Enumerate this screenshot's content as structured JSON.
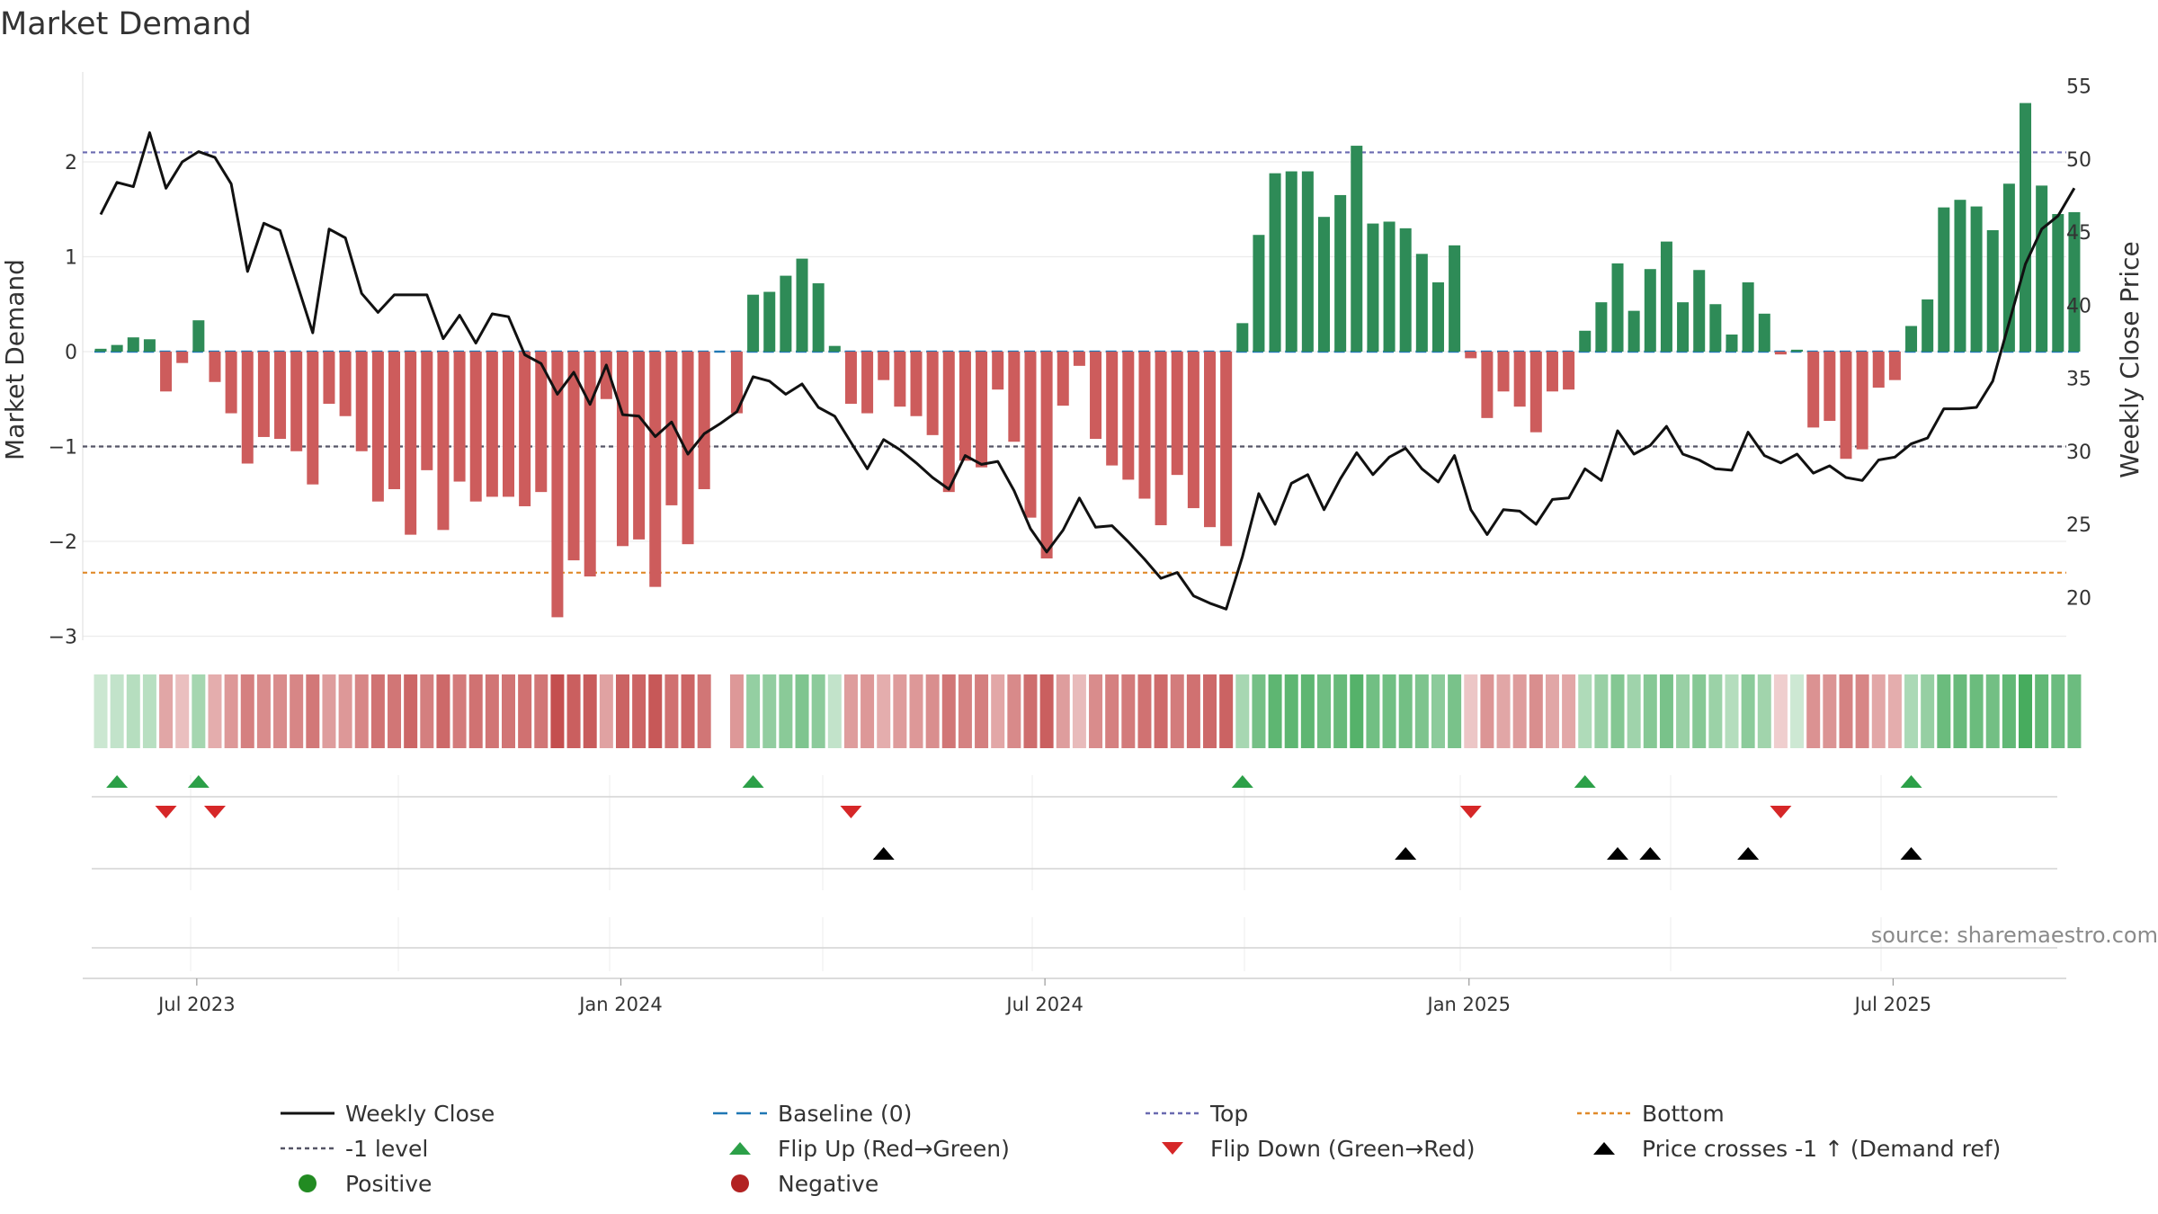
{
  "chart_data": {
    "type": "bar",
    "title": "Market Demand",
    "ylabel_left": "Market Demand",
    "ylabel_right": "Weekly Close Price",
    "ylim_left": [
      -3.0,
      2.8
    ],
    "ylim_right": [
      16,
      56
    ],
    "yticks_left": [
      2,
      1,
      0,
      -1,
      -2,
      -3
    ],
    "ytick_labels_left": [
      "2",
      "1",
      "0",
      "−1",
      "−2",
      "−3"
    ],
    "yticks_right": [
      55,
      50,
      45,
      40,
      35,
      30,
      25,
      20
    ],
    "ytick_labels_right": [
      "55",
      "50",
      "45",
      "40",
      "35",
      "30",
      "25",
      "20"
    ],
    "x_ticks": [
      {
        "label": "Jul 2023",
        "week": 6
      },
      {
        "label": "Jan 2024",
        "week": 32
      },
      {
        "label": "Jul 2024",
        "week": 58
      },
      {
        "label": "Jan 2025",
        "week": 84
      },
      {
        "label": "Jul 2025",
        "week": 110
      }
    ],
    "reference_lines": {
      "baseline": 0,
      "top": 2.1,
      "minus_one": -1,
      "bottom": -2.33
    },
    "demand_values": [
      0.03,
      0.07,
      0.15,
      0.13,
      -0.42,
      -0.12,
      0.33,
      -0.32,
      -0.65,
      -1.18,
      -0.9,
      -0.92,
      -1.05,
      -1.4,
      -0.55,
      -0.68,
      -1.05,
      -1.58,
      -1.45,
      -1.93,
      -1.25,
      -1.88,
      -1.37,
      -1.58,
      -1.53,
      -1.53,
      -1.63,
      -1.48,
      -2.8,
      -2.2,
      -2.37,
      -0.5,
      -2.05,
      -1.98,
      -2.48,
      -1.62,
      -2.03,
      -1.45,
      0.0,
      -0.65,
      0.6,
      0.63,
      0.8,
      0.98,
      0.72,
      0.06,
      -0.55,
      -0.65,
      -0.3,
      -0.58,
      -0.68,
      -0.88,
      -1.48,
      -1.15,
      -1.22,
      -0.4,
      -0.95,
      -1.75,
      -2.18,
      -0.57,
      -0.15,
      -0.92,
      -1.2,
      -1.35,
      -1.55,
      -1.83,
      -1.3,
      -1.65,
      -1.85,
      -2.05,
      0.3,
      1.23,
      1.88,
      1.9,
      1.9,
      1.42,
      1.65,
      2.17,
      1.35,
      1.37,
      1.3,
      1.03,
      0.73,
      1.12,
      -0.07,
      -0.7,
      -0.42,
      -0.58,
      -0.85,
      -0.42,
      -0.4,
      0.22,
      0.52,
      0.93,
      0.43,
      0.87,
      1.16,
      0.52,
      0.86,
      0.5,
      0.18,
      0.73,
      0.4,
      -0.03,
      0.02,
      -0.8,
      -0.73,
      -1.13,
      -1.03,
      -0.38,
      -0.3,
      0.27,
      0.55,
      1.52,
      1.6,
      1.53,
      1.28,
      1.77,
      2.62,
      1.75,
      1.45,
      1.47
    ],
    "weekly_close": [
      46.2,
      48.4,
      48.1,
      51.8,
      48.0,
      49.8,
      50.5,
      50.1,
      48.3,
      42.3,
      45.6,
      45.1,
      41.6,
      38.1,
      45.2,
      44.6,
      40.8,
      39.5,
      40.7,
      40.7,
      40.7,
      37.7,
      39.3,
      37.4,
      39.4,
      39.2,
      36.6,
      36.0,
      33.9,
      35.4,
      33.2,
      35.9,
      32.5,
      32.4,
      31.0,
      32.0,
      29.8,
      31.2,
      31.9,
      32.7,
      35.1,
      34.8,
      33.9,
      34.6,
      33.0,
      32.4,
      30.6,
      28.8,
      30.8,
      30.1,
      29.2,
      28.2,
      27.4,
      29.7,
      29.1,
      29.3,
      27.3,
      24.7,
      23.1,
      24.6,
      26.8,
      24.8,
      24.9,
      23.8,
      22.6,
      21.3,
      21.7,
      20.1,
      19.6,
      19.2,
      22.8,
      27.1,
      25.0,
      27.8,
      28.4,
      26.0,
      28.1,
      29.9,
      28.4,
      29.6,
      30.2,
      28.8,
      27.9,
      29.7,
      26.0,
      24.3,
      26.0,
      25.9,
      25.0,
      26.7,
      26.8,
      28.8,
      28.0,
      31.4,
      29.8,
      30.4,
      31.7,
      29.8,
      29.4,
      28.8,
      28.7,
      31.3,
      29.7,
      29.2,
      29.8,
      28.5,
      29.0,
      28.2,
      28.0,
      29.4,
      29.6,
      30.5,
      30.9,
      32.9,
      32.9,
      33.0,
      34.8,
      38.8,
      42.8,
      45.2,
      46.1,
      48.0
    ],
    "flip_up_weeks": [
      1,
      6,
      40,
      70,
      91,
      111
    ],
    "flip_down_weeks": [
      4,
      7,
      46,
      84,
      103
    ],
    "price_cross_weeks": [
      48,
      80,
      93,
      95,
      101,
      111
    ],
    "legend": [
      {
        "label": "Weekly Close",
        "kind": "line",
        "color": "#111111"
      },
      {
        "label": "Baseline (0)",
        "kind": "dash-long",
        "color": "#1f77b4"
      },
      {
        "label": "Top",
        "kind": "dash-short",
        "color": "#6a6ab0"
      },
      {
        "label": "Bottom",
        "kind": "dash-short",
        "color": "#e08a2a"
      },
      {
        "label": "-1 level",
        "kind": "dash-short",
        "color": "#555566"
      },
      {
        "label": "Flip Up (Red→Green)",
        "kind": "tri-up",
        "color": "#2ca048"
      },
      {
        "label": "Flip Down (Green→Red)",
        "kind": "tri-down",
        "color": "#d62728"
      },
      {
        "label": "Price crosses -1 ↑ (Demand ref)",
        "kind": "tri-up",
        "color": "#000000"
      },
      {
        "label": "Positive",
        "kind": "dot",
        "color": "#228b22"
      },
      {
        "label": "Negative",
        "kind": "dot",
        "color": "#b22222"
      }
    ],
    "source": "source: sharemaestro.com"
  },
  "colors": {
    "positive": "#2e8b57",
    "negative": "#cd5c5c",
    "price": "#111111"
  }
}
